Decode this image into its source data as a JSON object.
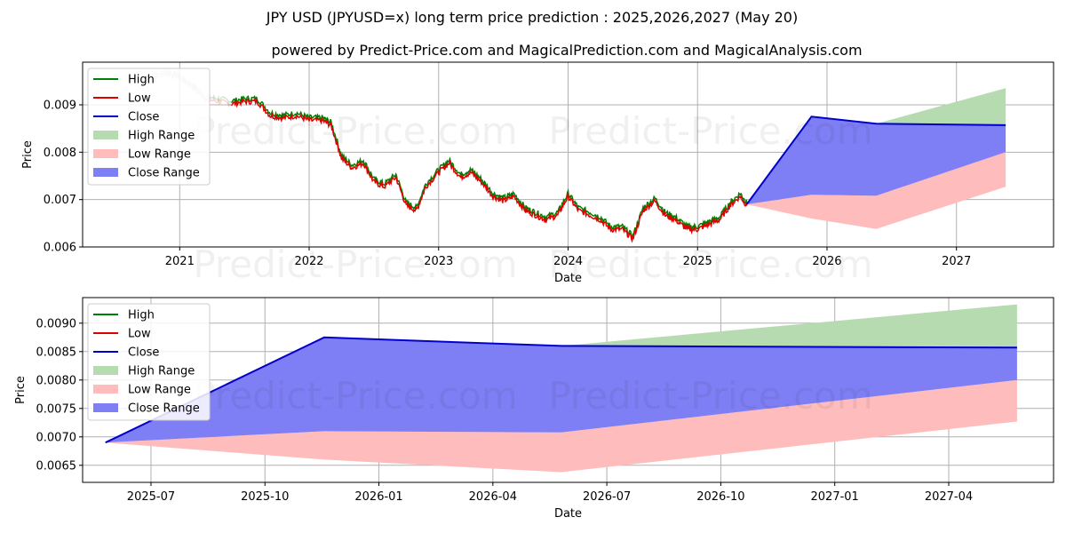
{
  "title": "JPY USD (JPYUSD=x) long term price prediction : 2025,2026,2027 (May 20)",
  "subtitle": "powered by Predict-Price.com and MagicalPrediction.com and MagicalAnalysis.com",
  "watermark": "Predict-Price.com",
  "colors": {
    "high": "#008000",
    "low": "#e00000",
    "close": "#0000cc",
    "high_range": "#b7dbb0",
    "low_range": "#ffbcbc",
    "close_range": "#7f7ff5",
    "grid": "#b0b0b0"
  },
  "legend": [
    "High",
    "Low",
    "Close",
    "High Range",
    "Low Range",
    "Close Range"
  ],
  "chart_data": [
    {
      "type": "line",
      "panel": "top",
      "xlabel": "Date",
      "ylabel": "Price",
      "xlim": [
        2020.25,
        2027.75
      ],
      "ylim": [
        0.006,
        0.0099
      ],
      "xticks": [
        2021,
        2022,
        2023,
        2024,
        2025,
        2026,
        2027
      ],
      "xtick_labels": [
        "2021",
        "2022",
        "2023",
        "2024",
        "2025",
        "2026",
        "2027"
      ],
      "yticks": [
        0.006,
        0.007,
        0.008,
        0.009
      ],
      "ytick_labels": [
        "0.006",
        "0.007",
        "0.008",
        "0.009"
      ],
      "grid": true,
      "legend_position": "top-left",
      "history": {
        "x": [
          2020.75,
          2020.9,
          2021.0,
          2021.1,
          2021.2,
          2021.3,
          2021.4,
          2021.5,
          2021.6,
          2021.7,
          2021.8,
          2021.9,
          2022.0,
          2022.1,
          2022.17,
          2022.25,
          2022.33,
          2022.42,
          2022.5,
          2022.58,
          2022.67,
          2022.75,
          2022.83,
          2022.9,
          2023.0,
          2023.08,
          2023.17,
          2023.25,
          2023.33,
          2023.42,
          2023.5,
          2023.58,
          2023.67,
          2023.75,
          2023.83,
          2023.92,
          2024.0,
          2024.08,
          2024.17,
          2024.25,
          2024.33,
          2024.42,
          2024.5,
          2024.58,
          2024.67,
          2024.75,
          2024.83,
          2024.92,
          2025.0,
          2025.08,
          2025.17,
          2025.25,
          2025.33,
          2025.38
        ],
        "close": [
          0.0095,
          0.0097,
          0.0096,
          0.0094,
          0.00915,
          0.0091,
          0.00905,
          0.0091,
          0.0091,
          0.0088,
          0.00875,
          0.0088,
          0.0087,
          0.0087,
          0.0086,
          0.0079,
          0.0077,
          0.0078,
          0.0074,
          0.0073,
          0.0075,
          0.0069,
          0.0068,
          0.0073,
          0.0076,
          0.0078,
          0.0075,
          0.0076,
          0.0074,
          0.0071,
          0.007,
          0.0071,
          0.0068,
          0.0067,
          0.0066,
          0.0067,
          0.0071,
          0.0068,
          0.0067,
          0.0066,
          0.0064,
          0.0064,
          0.0062,
          0.0068,
          0.007,
          0.0067,
          0.0066,
          0.0064,
          0.0064,
          0.0065,
          0.0066,
          0.0069,
          0.0071,
          0.0069
        ],
        "faded_until": 2021.4
      },
      "forecast": {
        "x": [
          2025.38,
          2025.88,
          2026.38,
          2027.38
        ],
        "close": [
          0.0069,
          0.00875,
          0.0086,
          0.00857
        ],
        "high_range_top": [
          0.0069,
          0.00875,
          0.0086,
          0.00935
        ],
        "high_range_bottom": [
          0.0069,
          0.00875,
          0.0086,
          0.00857
        ],
        "close_range_top": [
          0.0069,
          0.00875,
          0.0086,
          0.00857
        ],
        "close_range_bottom": [
          0.0069,
          0.0071,
          0.00708,
          0.008
        ],
        "low_range_top": [
          0.0069,
          0.0071,
          0.00708,
          0.008
        ],
        "low_range_bottom": [
          0.0069,
          0.0066,
          0.00638,
          0.00727
        ]
      }
    },
    {
      "type": "area",
      "panel": "bottom",
      "xlabel": "Date",
      "ylabel": "Price",
      "xlim": [
        2025.35,
        2027.48
      ],
      "ylim": [
        0.0062,
        0.00945
      ],
      "xticks": [
        2025.5,
        2025.75,
        2026.0,
        2026.25,
        2026.5,
        2026.75,
        2027.0,
        2027.25
      ],
      "xtick_labels": [
        "2025-07",
        "2025-10",
        "2026-01",
        "2026-04",
        "2026-07",
        "2026-10",
        "2027-01",
        "2027-04"
      ],
      "yticks": [
        0.0065,
        0.007,
        0.0075,
        0.008,
        0.0085,
        0.009
      ],
      "ytick_labels": [
        "0.0065",
        "0.0070",
        "0.0075",
        "0.0080",
        "0.0085",
        "0.0090"
      ],
      "grid": true,
      "legend_position": "top-left",
      "forecast": {
        "x": [
          2025.4,
          2025.88,
          2026.4,
          2027.4
        ],
        "close": [
          0.0069,
          0.00875,
          0.0086,
          0.00857
        ],
        "high_range_top": [
          0.0069,
          0.00875,
          0.0086,
          0.00933
        ],
        "high_range_bottom": [
          0.0069,
          0.00875,
          0.0086,
          0.00857
        ],
        "close_range_top": [
          0.0069,
          0.00875,
          0.0086,
          0.00857
        ],
        "close_range_bottom": [
          0.0069,
          0.0071,
          0.00708,
          0.008
        ],
        "low_range_top": [
          0.0069,
          0.0071,
          0.00708,
          0.008
        ],
        "low_range_bottom": [
          0.0069,
          0.0066,
          0.00638,
          0.00727
        ]
      }
    }
  ]
}
